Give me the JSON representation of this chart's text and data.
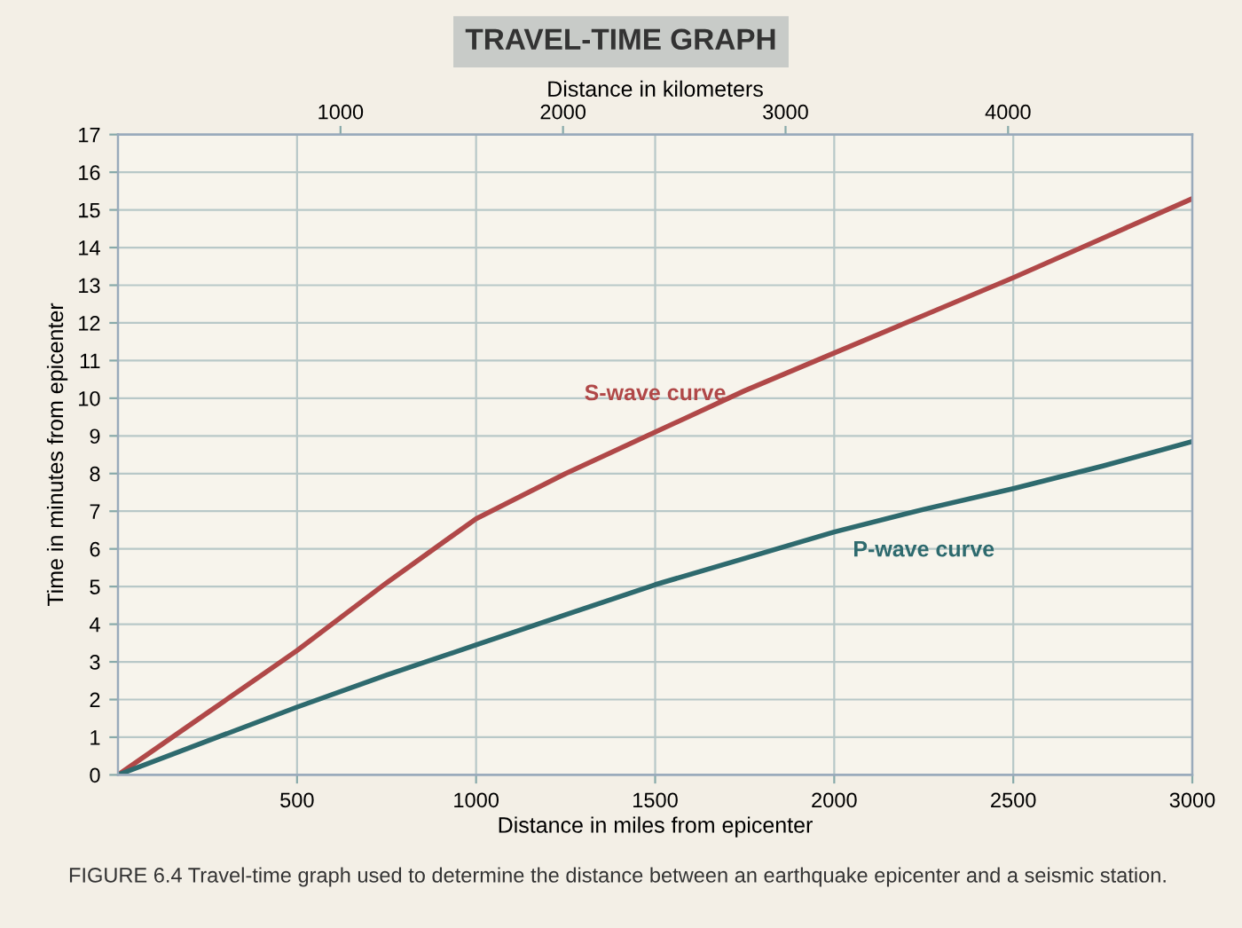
{
  "chart_data": {
    "type": "line",
    "title": "TRAVEL-TIME GRAPH",
    "xlabel": "Distance in miles from epicenter",
    "x2label": "Distance in kilometers",
    "ylabel": "Time in minutes from epicenter",
    "x": [
      0,
      250,
      500,
      750,
      1000,
      1250,
      1500,
      1750,
      2000,
      2250,
      2500,
      2750,
      3000
    ],
    "series": [
      {
        "name": "S-wave curve",
        "color": "#b04848",
        "values": [
          0,
          1.65,
          3.3,
          5.1,
          6.8,
          8.0,
          9.1,
          10.2,
          11.2,
          12.2,
          13.2,
          14.25,
          15.3
        ]
      },
      {
        "name": "P-wave curve",
        "color": "#2e6a6e",
        "values": [
          0,
          0.9,
          1.8,
          2.65,
          3.45,
          4.25,
          5.05,
          5.75,
          6.45,
          7.05,
          7.6,
          8.2,
          8.85
        ]
      }
    ],
    "xlim": [
      0,
      3000
    ],
    "xticks": [
      500,
      1000,
      1500,
      2000,
      2500,
      3000
    ],
    "x2lim": [
      0,
      4828
    ],
    "x2ticks": [
      1000,
      2000,
      3000,
      4000
    ],
    "ylim": [
      0,
      17
    ],
    "yticks": [
      0,
      1,
      2,
      3,
      4,
      5,
      6,
      7,
      8,
      9,
      10,
      11,
      12,
      13,
      14,
      15,
      16,
      17
    ],
    "grid": true,
    "marker": "none",
    "line_style": "solid",
    "legend": false,
    "annotations": [
      "FIGURE 6.4 Travel-time graph used to determine the distance between an earthquake epicenter and a seismic station."
    ]
  }
}
